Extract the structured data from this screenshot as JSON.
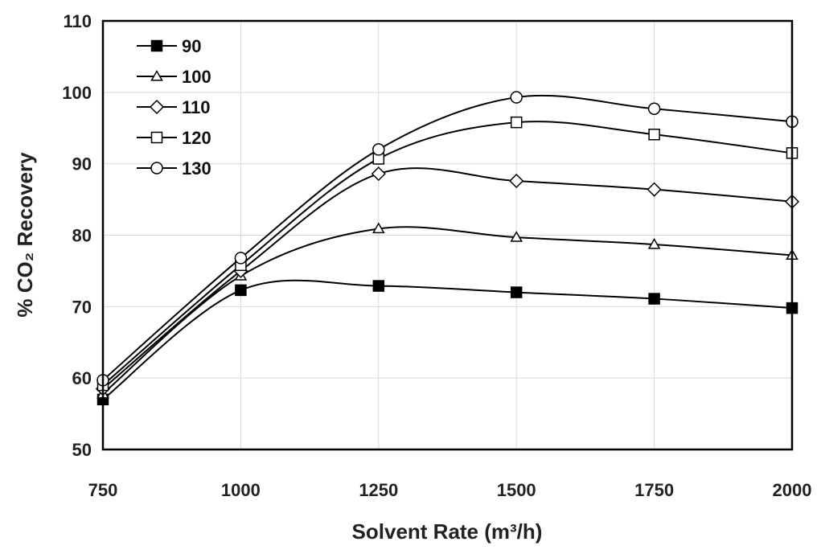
{
  "chart_data": {
    "type": "line",
    "title": "",
    "xlabel": "Solvent Rate (m³/h)",
    "ylabel": "% CO₂ Recovery",
    "x": [
      750,
      1000,
      1250,
      1500,
      1750,
      2000
    ],
    "xlim": [
      750,
      2000
    ],
    "ylim": [
      50,
      110
    ],
    "xticks": [
      "750",
      "1000",
      "1250",
      "1500",
      "1750",
      "2000"
    ],
    "yticks": [
      "50",
      "60",
      "70",
      "80",
      "90",
      "100",
      "110"
    ],
    "grid": true,
    "smooth": true,
    "legend_position": "top-left",
    "series": [
      {
        "name": "90",
        "marker": "filled-square",
        "values": [
          57.0,
          72.3,
          72.9,
          72.0,
          71.1,
          69.8
        ]
      },
      {
        "name": "100",
        "marker": "triangle",
        "values": [
          57.8,
          74.3,
          80.9,
          79.7,
          78.7,
          77.2
        ]
      },
      {
        "name": "110",
        "marker": "diamond",
        "values": [
          58.5,
          75.0,
          88.6,
          87.6,
          86.4,
          84.7
        ]
      },
      {
        "name": "120",
        "marker": "square",
        "values": [
          59.0,
          75.8,
          90.7,
          95.8,
          94.1,
          91.5
        ]
      },
      {
        "name": "130",
        "marker": "circle",
        "values": [
          59.7,
          76.8,
          92.0,
          99.3,
          97.7,
          95.9
        ]
      }
    ]
  }
}
